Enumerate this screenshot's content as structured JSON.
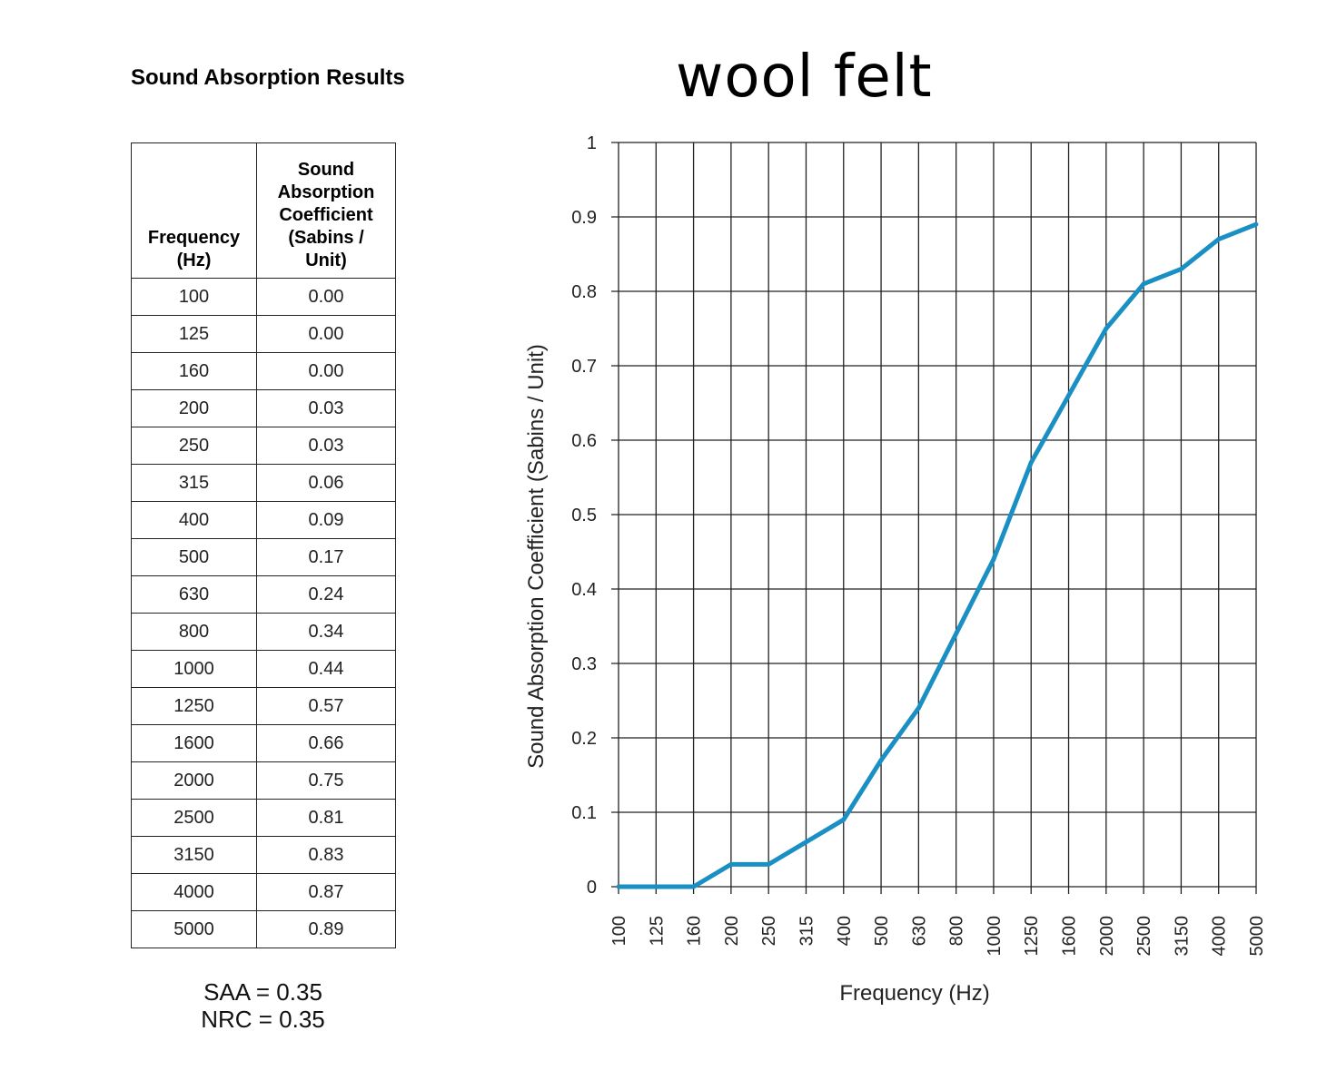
{
  "left_title": "Sound Absorption Results",
  "main_title": "wool felt",
  "table": {
    "headers": [
      "Frequency (Hz)",
      "Sound Absorption Coefficient (Sabins / Unit)"
    ],
    "header_lines": [
      [
        "Frequency",
        "(Hz)"
      ],
      [
        "Sound",
        "Absorption",
        "Coefficient",
        "(Sabins /",
        "Unit)"
      ]
    ],
    "rows": [
      [
        "100",
        "0.00"
      ],
      [
        "125",
        "0.00"
      ],
      [
        "160",
        "0.00"
      ],
      [
        "200",
        "0.03"
      ],
      [
        "250",
        "0.03"
      ],
      [
        "315",
        "0.06"
      ],
      [
        "400",
        "0.09"
      ],
      [
        "500",
        "0.17"
      ],
      [
        "630",
        "0.24"
      ],
      [
        "800",
        "0.34"
      ],
      [
        "1000",
        "0.44"
      ],
      [
        "1250",
        "0.57"
      ],
      [
        "1600",
        "0.66"
      ],
      [
        "2000",
        "0.75"
      ],
      [
        "2500",
        "0.81"
      ],
      [
        "3150",
        "0.83"
      ],
      [
        "4000",
        "0.87"
      ],
      [
        "5000",
        "0.89"
      ]
    ]
  },
  "summary": {
    "saa": "SAA = 0.35",
    "nrc": "NRC = 0.35"
  },
  "chart_data": {
    "type": "line",
    "title": "wool felt",
    "xlabel": "Frequency (Hz)",
    "ylabel": "Sound Absorption Coefficient (Sabins / Unit)",
    "categories": [
      "100",
      "125",
      "160",
      "200",
      "250",
      "315",
      "400",
      "500",
      "630",
      "800",
      "1000",
      "1250",
      "1600",
      "2000",
      "2500",
      "3150",
      "4000",
      "5000"
    ],
    "x_axis_scale": "categorical (equally spaced 1/3-octave bands)",
    "series": [
      {
        "values": [
          0.0,
          0.0,
          0.0,
          0.03,
          0.03,
          0.06,
          0.09,
          0.17,
          0.24,
          0.34,
          0.44,
          0.57,
          0.66,
          0.75,
          0.81,
          0.83,
          0.87,
          0.89
        ],
        "color": "#1a8fc4"
      }
    ],
    "ylim": [
      0,
      1
    ],
    "yticks": [
      "0",
      "0.1",
      "0.2",
      "0.3",
      "0.4",
      "0.5",
      "0.6",
      "0.7",
      "0.8",
      "0.9",
      "1"
    ],
    "grid": true,
    "legend": "none"
  },
  "colors": {
    "line": "#1a8fc4",
    "grid": "#222222"
  }
}
